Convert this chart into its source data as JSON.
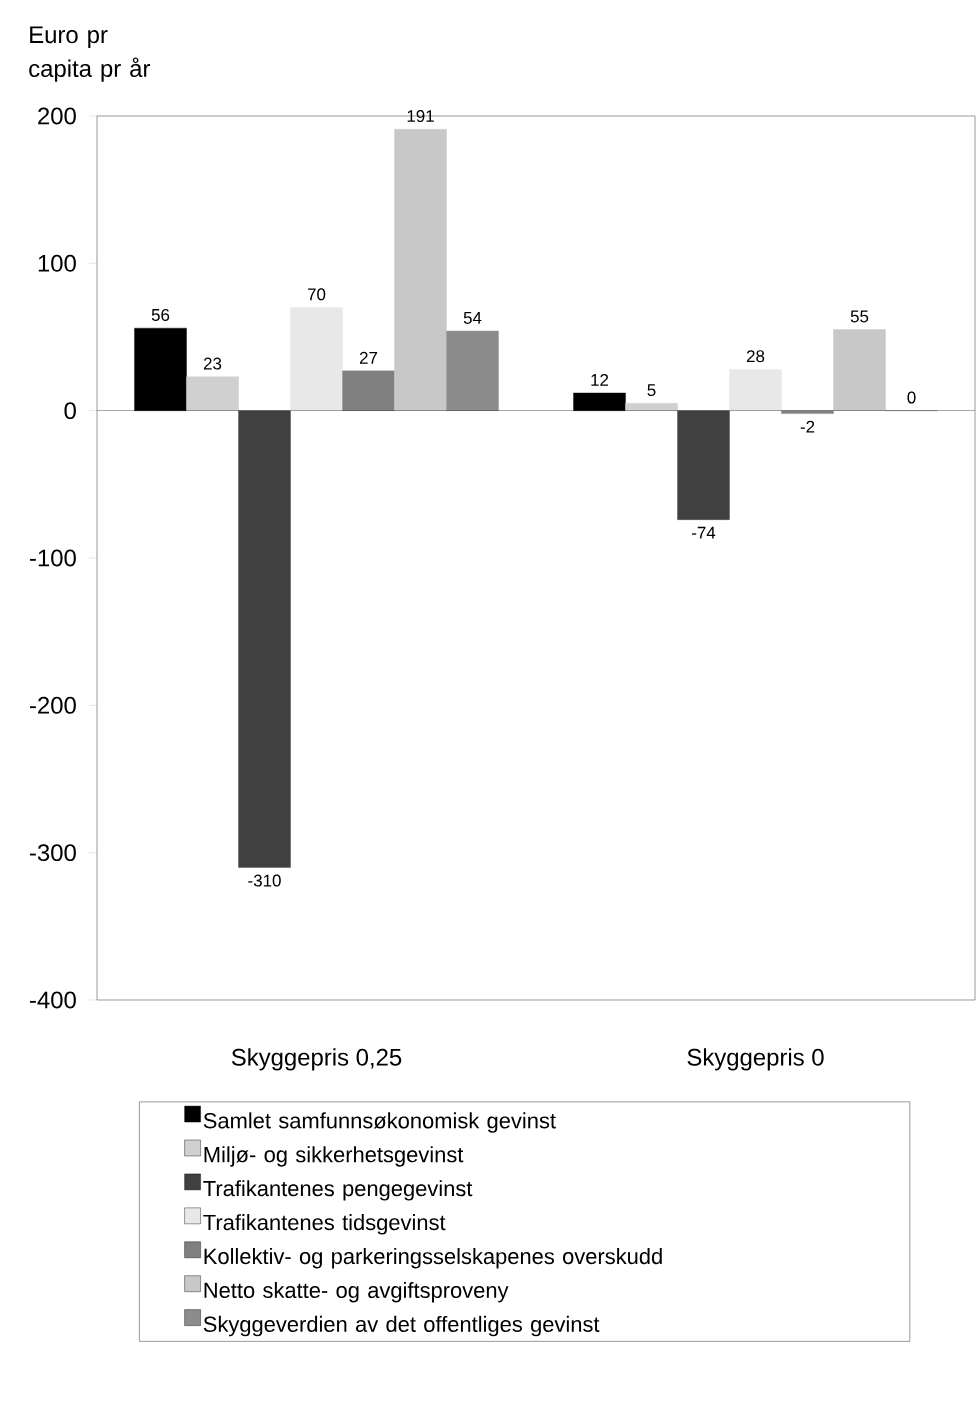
{
  "chart_data": {
    "type": "bar",
    "ylabel": "Euro pr capita pr år",
    "categories": [
      "Skyggepris 0,25",
      "Skyggepris 0"
    ],
    "series": [
      {
        "name": "Samlet samfunnsøkonomisk gevinst",
        "color": "#000000",
        "values": [
          56,
          12
        ]
      },
      {
        "name": "Miljø- og sikkerhetsgevinst",
        "color": "#d0d0d0",
        "values": [
          23,
          5
        ]
      },
      {
        "name": "Trafikantenes pengegevinst",
        "color": "#404040",
        "values": [
          -310,
          -74
        ]
      },
      {
        "name": "Trafikantenes tidsgevinst",
        "color": "#e8e8e8",
        "values": [
          70,
          28
        ]
      },
      {
        "name": "Kollektiv- og parkeringsselskapenes overskudd",
        "color": "#808080",
        "values": [
          27,
          -2
        ]
      },
      {
        "name": "Netto skatte- og avgiftsproveny",
        "color": "#c8c8c8",
        "values": [
          191,
          55
        ]
      },
      {
        "name": "Skyggeverdien av det offentliges gevinst",
        "color": "#8c8c8c",
        "values": [
          54,
          0
        ]
      }
    ],
    "ylim": [
      -400,
      200
    ],
    "yticks": [
      -400,
      -300,
      -200,
      -100,
      0,
      100,
      200
    ],
    "data_labels": true,
    "legend": "bottom"
  }
}
